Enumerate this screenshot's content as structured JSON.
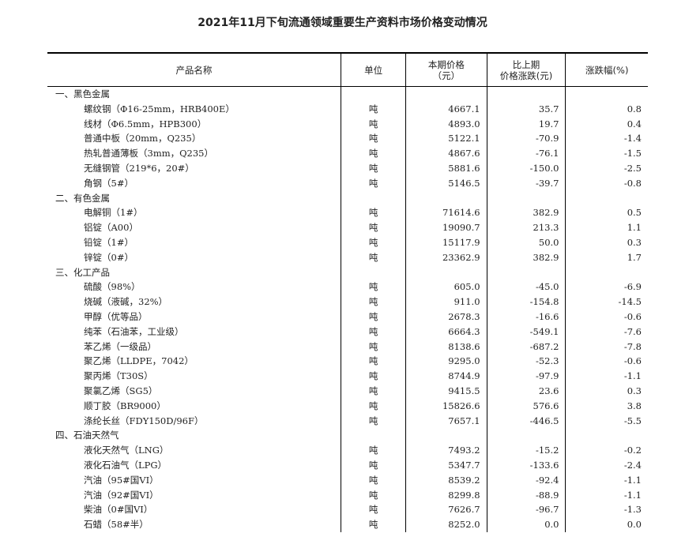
{
  "title": "2021年11月下旬流通领域重要生产资料市场价格变动情况",
  "headers": {
    "name": "产品名称",
    "unit": "单位",
    "price_l1": "本期价格",
    "price_l2": "（元）",
    "change_l1": "比上期",
    "change_l2": "价格涨跌(元)",
    "pct": "涨跌幅(%)"
  },
  "sections": [
    {
      "name": "一、黑色金属",
      "items": [
        [
          "螺纹钢（Φ16-25mm，HRB400E）",
          "吨",
          "4667.1",
          "35.7",
          "0.8"
        ],
        [
          "线材（Φ6.5mm，HPB300）",
          "吨",
          "4893.0",
          "19.7",
          "0.4"
        ],
        [
          "普通中板（20mm，Q235）",
          "吨",
          "5122.1",
          "-70.9",
          "-1.4"
        ],
        [
          "热轧普通薄板（3mm，Q235）",
          "吨",
          "4867.6",
          "-76.1",
          "-1.5"
        ],
        [
          "无缝钢管（219*6，20#）",
          "吨",
          "5881.6",
          "-150.0",
          "-2.5"
        ],
        [
          "角钢（5#）",
          "吨",
          "5146.5",
          "-39.7",
          "-0.8"
        ]
      ]
    },
    {
      "name": "二、有色金属",
      "items": [
        [
          "电解铜（1#）",
          "吨",
          "71614.6",
          "382.9",
          "0.5"
        ],
        [
          "铝锭（A00）",
          "吨",
          "19090.7",
          "213.3",
          "1.1"
        ],
        [
          "铅锭（1#）",
          "吨",
          "15117.9",
          "50.0",
          "0.3"
        ],
        [
          "锌锭（0#）",
          "吨",
          "23362.9",
          "382.9",
          "1.7"
        ]
      ]
    },
    {
      "name": "三、化工产品",
      "items": [
        [
          "硫酸（98%）",
          "吨",
          "605.0",
          "-45.0",
          "-6.9"
        ],
        [
          "烧碱（液碱，32%）",
          "吨",
          "911.0",
          "-154.8",
          "-14.5"
        ],
        [
          "甲醇（优等品）",
          "吨",
          "2678.3",
          "-16.6",
          "-0.6"
        ],
        [
          "纯苯（石油苯，工业级）",
          "吨",
          "6664.3",
          "-549.1",
          "-7.6"
        ],
        [
          "苯乙烯（一级品）",
          "吨",
          "8138.6",
          "-687.2",
          "-7.8"
        ],
        [
          "聚乙烯（LLDPE，7042）",
          "吨",
          "9295.0",
          "-52.3",
          "-0.6"
        ],
        [
          "聚丙烯（T30S）",
          "吨",
          "8744.9",
          "-97.9",
          "-1.1"
        ],
        [
          "聚氯乙烯（SG5）",
          "吨",
          "9415.5",
          "23.6",
          "0.3"
        ],
        [
          "顺丁胶（BR9000）",
          "吨",
          "15826.6",
          "576.6",
          "3.8"
        ],
        [
          "涤纶长丝（FDY150D/96F）",
          "吨",
          "7657.1",
          "-446.5",
          "-5.5"
        ]
      ]
    },
    {
      "name": "四、石油天然气",
      "items": [
        [
          "液化天然气（LNG）",
          "吨",
          "7493.2",
          "-15.2",
          "-0.2"
        ],
        [
          "液化石油气（LPG）",
          "吨",
          "5347.7",
          "-133.6",
          "-2.4"
        ],
        [
          "汽油（95#国VI）",
          "吨",
          "8539.2",
          "-92.4",
          "-1.1"
        ],
        [
          "汽油（92#国VI）",
          "吨",
          "8299.8",
          "-88.9",
          "-1.1"
        ],
        [
          "柴油（0#国VI）",
          "吨",
          "7626.7",
          "-96.7",
          "-1.3"
        ],
        [
          "石蜡（58#半）",
          "吨",
          "8252.0",
          "0.0",
          "0.0"
        ]
      ]
    }
  ]
}
